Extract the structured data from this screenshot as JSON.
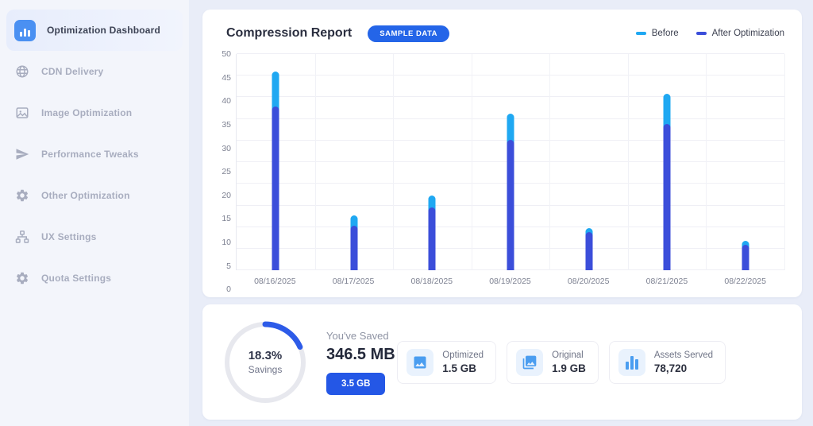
{
  "sidebar": {
    "items": [
      {
        "label": "Optimization Dashboard",
        "icon": "bar-chart-icon",
        "active": true
      },
      {
        "label": "CDN Delivery",
        "icon": "globe-icon",
        "active": false
      },
      {
        "label": "Image Optimization",
        "icon": "image-icon",
        "active": false
      },
      {
        "label": "Performance Tweaks",
        "icon": "rocket-icon",
        "active": false
      },
      {
        "label": "Other Optimization",
        "icon": "gear-icon",
        "active": false
      },
      {
        "label": "UX Settings",
        "icon": "sitemap-icon",
        "active": false
      },
      {
        "label": "Quota Settings",
        "icon": "gear-icon",
        "active": false
      }
    ]
  },
  "report": {
    "title": "Compression Report",
    "badge": "SAMPLE DATA"
  },
  "chart_data": {
    "type": "bar",
    "title": "Compression Report",
    "categories": [
      "08/16/2025",
      "08/17/2025",
      "08/18/2025",
      "08/19/2025",
      "08/20/2025",
      "08/21/2025",
      "08/22/2025"
    ],
    "series": [
      {
        "name": "Before",
        "color": "#1fa8f2",
        "values": [
          46,
          12.7,
          17.3,
          36.3,
          9.7,
          40.8,
          6.9
        ]
      },
      {
        "name": "After Optimization",
        "color": "#3b4eda",
        "values": [
          37.9,
          10.4,
          14.5,
          30.1,
          8.9,
          33.9,
          6.0
        ]
      }
    ],
    "ylim": [
      0,
      50
    ],
    "ytick_step": 5,
    "grid": true,
    "legend_position": "top-right"
  },
  "summary": {
    "savings_percent": "18.3%",
    "savings_value": 18.3,
    "savings_label": "Savings",
    "saved_heading": "You've Saved",
    "saved_value": "346.5 MB",
    "quota_label": "3.5 GB",
    "donut_color": "#2d5be8",
    "donut_track": "#e7e8ee"
  },
  "stats": [
    {
      "label": "Optimized",
      "value": "1.5 GB",
      "icon": "image-icon"
    },
    {
      "label": "Original",
      "value": "1.9 GB",
      "icon": "photo-stack-icon"
    },
    {
      "label": "Assets Served",
      "value": "78,720",
      "icon": "bar-chart-icon"
    }
  ]
}
